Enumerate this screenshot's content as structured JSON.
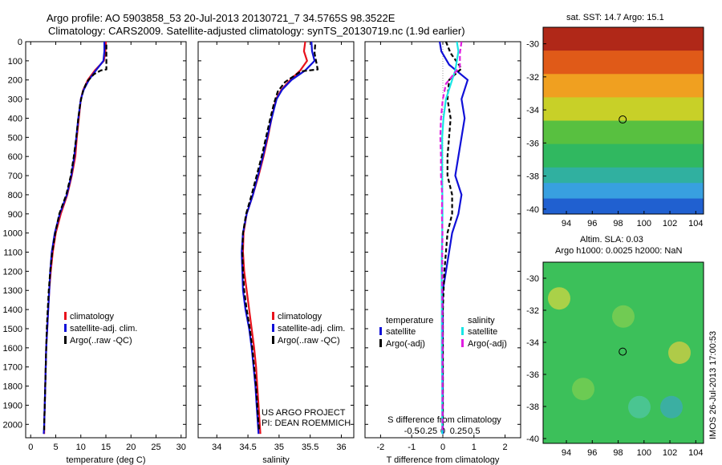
{
  "header": {
    "line1": "Argo profile: AO 5903858_53 20-Jul-2013 20130721_7 34.5765S 98.3522E",
    "line2": "Climatology: CARS2009. Satellite-adjusted climatology: synTS_20130719.nc (1.9d earlier)"
  },
  "colors": {
    "clim": "#e8121c",
    "sat": "#1010d8",
    "argo": "#000000",
    "cyan": "#19e5e5",
    "magenta": "#e01ee0"
  },
  "chart_data": [
    {
      "type": "line",
      "name": "temperature",
      "xlabel": "temperature (deg C)",
      "ylabel": "",
      "xlim": [
        -1,
        31
      ],
      "ylim": [
        2070,
        0
      ],
      "xticks": [
        0,
        5,
        10,
        15,
        20,
        25,
        30
      ],
      "yticks": [
        0,
        100,
        200,
        300,
        400,
        500,
        600,
        700,
        800,
        900,
        1000,
        1100,
        1200,
        1300,
        1400,
        1500,
        1600,
        1700,
        1800,
        1900,
        2000
      ],
      "legend": [
        "climatology",
        "satellite-adj. clim.",
        "Argo(..raw -QC)"
      ],
      "series": [
        {
          "name": "climatology",
          "color": "clim",
          "dash": "",
          "points": [
            [
              15.0,
              0
            ],
            [
              14.9,
              50
            ],
            [
              14.6,
              100
            ],
            [
              12.8,
              150
            ],
            [
              11.4,
              200
            ],
            [
              10.5,
              250
            ],
            [
              10.0,
              300
            ],
            [
              9.6,
              400
            ],
            [
              9.2,
              500
            ],
            [
              8.9,
              600
            ],
            [
              8.2,
              700
            ],
            [
              7.3,
              800
            ],
            [
              6.0,
              900
            ],
            [
              5.0,
              1000
            ],
            [
              4.4,
              1100
            ],
            [
              4.0,
              1200
            ],
            [
              3.7,
              1300
            ],
            [
              3.5,
              1400
            ],
            [
              3.3,
              1500
            ],
            [
              3.1,
              1600
            ],
            [
              3.0,
              1700
            ],
            [
              2.9,
              1800
            ],
            [
              2.8,
              1900
            ],
            [
              2.7,
              2000
            ],
            [
              2.7,
              2050
            ]
          ]
        },
        {
          "name": "satellite-adj. clim.",
          "color": "sat",
          "dash": "",
          "points": [
            [
              14.7,
              0
            ],
            [
              14.7,
              50
            ],
            [
              14.5,
              100
            ],
            [
              13.0,
              150
            ],
            [
              11.6,
              200
            ],
            [
              10.6,
              250
            ],
            [
              10.0,
              300
            ],
            [
              9.5,
              400
            ],
            [
              9.1,
              500
            ],
            [
              8.7,
              600
            ],
            [
              8.1,
              700
            ],
            [
              7.2,
              800
            ],
            [
              5.8,
              900
            ],
            [
              4.8,
              1000
            ],
            [
              4.2,
              1100
            ],
            [
              3.9,
              1200
            ],
            [
              3.7,
              1300
            ],
            [
              3.5,
              1400
            ],
            [
              3.3,
              1500
            ],
            [
              3.1,
              1600
            ],
            [
              3.0,
              1700
            ],
            [
              2.9,
              1800
            ],
            [
              2.8,
              1900
            ],
            [
              2.7,
              2000
            ],
            [
              2.6,
              2050
            ]
          ]
        },
        {
          "name": "Argo(..raw -QC)",
          "color": "argo",
          "dash": "6,3",
          "points": [
            [
              15.1,
              15
            ],
            [
              15.1,
              60
            ],
            [
              15.1,
              145
            ],
            [
              14.0,
              150
            ],
            [
              12.6,
              170
            ],
            [
              11.2,
              210
            ],
            [
              10.4,
              260
            ],
            [
              9.9,
              320
            ],
            [
              9.5,
              400
            ],
            [
              9.1,
              500
            ],
            [
              8.6,
              600
            ],
            [
              8.0,
              700
            ],
            [
              7.1,
              800
            ],
            [
              5.7,
              900
            ],
            [
              4.9,
              1000
            ],
            [
              4.3,
              1100
            ],
            [
              3.9,
              1200
            ],
            [
              3.6,
              1300
            ],
            [
              3.4,
              1400
            ],
            [
              3.2,
              1500
            ],
            [
              3.1,
              1600
            ],
            [
              3.0,
              1700
            ],
            [
              2.9,
              1800
            ],
            [
              2.8,
              1900
            ],
            [
              2.7,
              2000
            ],
            [
              2.7,
              2030
            ]
          ]
        }
      ]
    },
    {
      "type": "line",
      "name": "salinity",
      "xlabel": "salinity",
      "xlim": [
        33.7,
        36.2
      ],
      "ylim": [
        2070,
        0
      ],
      "xticks": [
        34,
        34.5,
        35,
        35.5,
        36
      ],
      "legend": [
        "climatology",
        "satellite-adj. clim.",
        "Argo(..raw -QC)"
      ],
      "series": [
        {
          "name": "climatology",
          "color": "clim",
          "dash": "",
          "points": [
            [
              35.42,
              0
            ],
            [
              35.4,
              50
            ],
            [
              35.45,
              100
            ],
            [
              35.34,
              150
            ],
            [
              35.18,
              200
            ],
            [
              35.04,
              250
            ],
            [
              34.95,
              300
            ],
            [
              34.88,
              400
            ],
            [
              34.82,
              500
            ],
            [
              34.75,
              600
            ],
            [
              34.67,
              700
            ],
            [
              34.58,
              800
            ],
            [
              34.48,
              900
            ],
            [
              34.43,
              1000
            ],
            [
              34.42,
              1100
            ],
            [
              34.44,
              1200
            ],
            [
              34.48,
              1300
            ],
            [
              34.52,
              1400
            ],
            [
              34.56,
              1500
            ],
            [
              34.6,
              1600
            ],
            [
              34.63,
              1700
            ],
            [
              34.65,
              1800
            ],
            [
              34.67,
              1900
            ],
            [
              34.69,
              2000
            ],
            [
              34.7,
              2050
            ]
          ]
        },
        {
          "name": "satellite-adj. clim.",
          "color": "sat",
          "dash": "",
          "points": [
            [
              35.52,
              0
            ],
            [
              35.53,
              50
            ],
            [
              35.57,
              100
            ],
            [
              35.42,
              150
            ],
            [
              35.2,
              200
            ],
            [
              35.05,
              250
            ],
            [
              34.96,
              300
            ],
            [
              34.88,
              400
            ],
            [
              34.81,
              500
            ],
            [
              34.74,
              600
            ],
            [
              34.66,
              700
            ],
            [
              34.58,
              800
            ],
            [
              34.48,
              900
            ],
            [
              34.42,
              1000
            ],
            [
              34.4,
              1100
            ],
            [
              34.41,
              1200
            ],
            [
              34.42,
              1300
            ],
            [
              34.46,
              1400
            ],
            [
              34.52,
              1500
            ],
            [
              34.56,
              1600
            ],
            [
              34.59,
              1700
            ],
            [
              34.62,
              1800
            ],
            [
              34.64,
              1900
            ],
            [
              34.66,
              2000
            ],
            [
              34.67,
              2050
            ]
          ]
        },
        {
          "name": "Argo(..raw -QC)",
          "color": "argo",
          "dash": "6,3",
          "points": [
            [
              35.58,
              15
            ],
            [
              35.57,
              60
            ],
            [
              35.62,
              145
            ],
            [
              35.35,
              155
            ],
            [
              35.1,
              210
            ],
            [
              34.98,
              260
            ],
            [
              34.92,
              320
            ],
            [
              34.86,
              400
            ],
            [
              34.79,
              500
            ],
            [
              34.72,
              600
            ],
            [
              34.64,
              700
            ],
            [
              34.56,
              800
            ],
            [
              34.47,
              900
            ],
            [
              34.42,
              1000
            ],
            [
              34.41,
              1100
            ],
            [
              34.42,
              1200
            ],
            [
              34.44,
              1300
            ],
            [
              34.48,
              1400
            ],
            [
              34.53,
              1500
            ],
            [
              34.57,
              1600
            ],
            [
              34.6,
              1700
            ],
            [
              34.63,
              1800
            ],
            [
              34.65,
              1900
            ],
            [
              34.67,
              2000
            ],
            [
              34.68,
              2030
            ]
          ]
        }
      ]
    },
    {
      "type": "line",
      "name": "difference",
      "xlabel": "T difference from climatology",
      "xlabel2": "S difference from climatology",
      "xlim": [
        -2.5,
        2.5
      ],
      "ylim": [
        2070,
        0
      ],
      "xticks": [
        -2,
        -1,
        0,
        1,
        2
      ],
      "xticklabels": [
        "-2",
        "-1",
        "0",
        "1",
        "2"
      ],
      "sticks": [
        -0.5,
        -0.25,
        0,
        0.25,
        0.5
      ],
      "sticklabels": [
        "-0.5",
        "-0.25",
        "0",
        "0.25",
        "0.5"
      ],
      "legend_groups": [
        {
          "title": "temperature",
          "items": [
            "satellite",
            "Argo(-adj)"
          ]
        },
        {
          "title": "salinity",
          "items": [
            "satellite",
            "Argo(-adj)"
          ]
        }
      ],
      "series": [
        {
          "name": "temperature satellite",
          "color": "sat",
          "dash": "",
          "points": [
            [
              -0.1,
              0
            ],
            [
              -0.05,
              50
            ],
            [
              0.2,
              120
            ],
            [
              0.8,
              200
            ],
            [
              0.6,
              300
            ],
            [
              0.7,
              400
            ],
            [
              0.6,
              500
            ],
            [
              0.5,
              600
            ],
            [
              0.4,
              700
            ],
            [
              0.6,
              800
            ],
            [
              0.5,
              900
            ],
            [
              0.3,
              1000
            ],
            [
              0.2,
              1100
            ],
            [
              0.1,
              1200
            ],
            [
              0.0,
              1300
            ],
            [
              0.0,
              1500
            ],
            [
              0.0,
              1700
            ],
            [
              0.0,
              1900
            ],
            [
              0.0,
              2050
            ]
          ]
        },
        {
          "name": "temperature Argo(-adj)",
          "color": "argo",
          "dash": "5,3",
          "points": [
            [
              0.1,
              0
            ],
            [
              0.25,
              60
            ],
            [
              0.6,
              140
            ],
            [
              0.2,
              200
            ],
            [
              0.15,
              300
            ],
            [
              0.25,
              400
            ],
            [
              0.2,
              500
            ],
            [
              0.15,
              600
            ],
            [
              0.15,
              700
            ],
            [
              0.3,
              800
            ],
            [
              0.3,
              900
            ],
            [
              0.15,
              1000
            ],
            [
              0.1,
              1100
            ],
            [
              0.05,
              1200
            ],
            [
              0.0,
              1400
            ],
            [
              0.0,
              1700
            ],
            [
              0.0,
              2030
            ]
          ]
        },
        {
          "name": "salinity satellite",
          "color": "cyan",
          "dash": "",
          "points": [
            [
              0.45,
              0
            ],
            [
              0.5,
              50
            ],
            [
              0.45,
              100
            ],
            [
              0.4,
              150
            ],
            [
              0.3,
              200
            ],
            [
              0.1,
              300
            ],
            [
              0.02,
              400
            ],
            [
              -0.02,
              500
            ],
            [
              -0.02,
              700
            ],
            [
              -0.01,
              900
            ],
            [
              -0.03,
              1100
            ],
            [
              -0.04,
              1200
            ],
            [
              -0.03,
              1400
            ],
            [
              -0.03,
              1600
            ],
            [
              -0.02,
              1800
            ],
            [
              -0.02,
              2050
            ]
          ]
        },
        {
          "name": "salinity Argo(-adj)",
          "color": "magenta",
          "dash": "6,3",
          "points": [
            [
              0.6,
              0
            ],
            [
              0.55,
              60
            ],
            [
              0.55,
              130
            ],
            [
              0.4,
              160
            ],
            [
              0.1,
              220
            ],
            [
              0.0,
              300
            ],
            [
              -0.06,
              400
            ],
            [
              -0.08,
              500
            ],
            [
              -0.06,
              600
            ],
            [
              -0.06,
              700
            ],
            [
              -0.02,
              800
            ],
            [
              -0.03,
              900
            ],
            [
              -0.01,
              1000
            ],
            [
              -0.02,
              1100
            ],
            [
              -0.02,
              1300
            ],
            [
              -0.01,
              1500
            ],
            [
              -0.01,
              1700
            ],
            [
              -0.01,
              2030
            ]
          ]
        }
      ]
    }
  ],
  "panel_notes": {
    "project_line1": "US ARGO PROJECT",
    "project_line2": "PI: DEAN ROEMMICH"
  },
  "maps": {
    "sst_title": "sat. SST: 14.7 Argo: 15.1",
    "sla_title1": "Altim. SLA: 0.03",
    "sla_title2": "Argo h1000: 0.0025 h2000: NaN",
    "lat_ticks": [
      "-30",
      "-32",
      "-34",
      "-36",
      "-38",
      "-40"
    ],
    "lon_ticks": [
      "94",
      "96",
      "98",
      "100",
      "102",
      "104"
    ],
    "lon_range": [
      92.2,
      104.6
    ],
    "lat_range": [
      -40.3,
      -29.0
    ],
    "marker": {
      "lon": 98.35,
      "lat": -34.58
    },
    "footer": "IMOS 26-Jul-2013 17:00:53"
  }
}
